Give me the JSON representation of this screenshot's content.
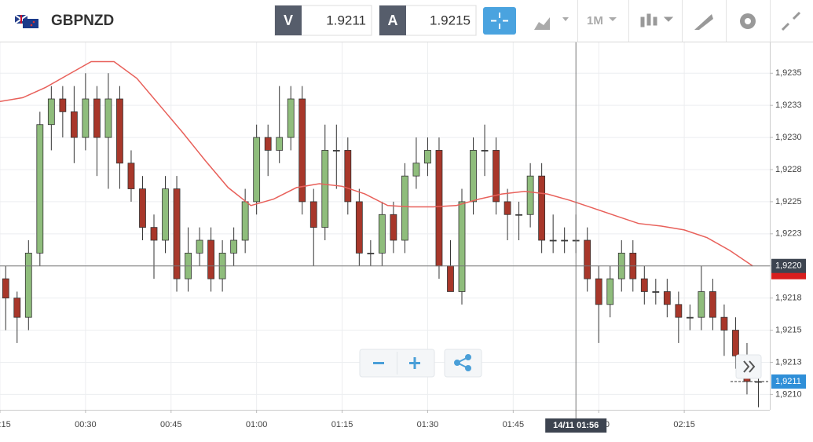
{
  "header": {
    "symbol": "GBPNZD",
    "bid_label": "V",
    "bid": 1.9211,
    "ask_label": "A",
    "ask": 1.9215,
    "timeframe": "1M"
  },
  "chart_data": {
    "type": "candlestick",
    "x": [
      "00:16",
      "00:18",
      "00:20",
      "00:22",
      "00:24",
      "00:26",
      "00:28",
      "00:30",
      "00:32",
      "00:34",
      "00:36",
      "00:38",
      "00:40",
      "00:42",
      "00:44",
      "00:46",
      "00:48",
      "00:50",
      "00:52",
      "00:54",
      "00:56",
      "00:58",
      "01:00",
      "01:02",
      "01:04",
      "01:06",
      "01:08",
      "01:10",
      "01:12",
      "01:14",
      "01:16",
      "01:18",
      "01:20",
      "01:22",
      "01:24",
      "01:26",
      "01:28",
      "01:30",
      "01:32",
      "01:34",
      "01:36",
      "01:38",
      "01:40",
      "01:42",
      "01:44",
      "01:46",
      "01:48",
      "01:50",
      "01:52",
      "01:54",
      "01:56",
      "01:58",
      "02:00",
      "02:02",
      "02:04",
      "02:06",
      "02:08",
      "02:10",
      "02:12",
      "02:14",
      "02:16",
      "02:18",
      "02:20",
      "02:22",
      "02:24",
      "02:26",
      "02:28"
    ],
    "open": [
      1.9219,
      1.92175,
      1.9216,
      1.9221,
      1.9231,
      1.9233,
      1.9232,
      1.923,
      1.9233,
      1.923,
      1.9233,
      1.9228,
      1.9226,
      1.9223,
      1.9222,
      1.9226,
      1.9219,
      1.9221,
      1.9222,
      1.9219,
      1.9221,
      1.9222,
      1.9225,
      1.923,
      1.9229,
      1.923,
      1.9233,
      1.9225,
      1.9223,
      1.9229,
      1.9229,
      1.9225,
      1.9221,
      1.9221,
      1.9224,
      1.9222,
      1.9227,
      1.9228,
      1.9229,
      1.922,
      1.9218,
      1.9225,
      1.9229,
      1.9229,
      1.9225,
      1.9224,
      1.9224,
      1.9227,
      1.9222,
      1.9222,
      1.9222,
      1.9222,
      1.9219,
      1.9217,
      1.9219,
      1.9221,
      1.9219,
      1.9218,
      1.9218,
      1.9217,
      1.9216,
      1.9216,
      1.9218,
      1.9216,
      1.9215,
      1.9213,
      1.9211
    ],
    "high": [
      1.922,
      1.9218,
      1.9222,
      1.9232,
      1.9234,
      1.9234,
      1.9234,
      1.9235,
      1.9234,
      1.9235,
      1.9234,
      1.9229,
      1.9227,
      1.9224,
      1.9227,
      1.9227,
      1.9223,
      1.9223,
      1.9223,
      1.9222,
      1.9223,
      1.9226,
      1.9231,
      1.9231,
      1.9234,
      1.9234,
      1.9234,
      1.9226,
      1.9231,
      1.9231,
      1.923,
      1.9226,
      1.9222,
      1.9225,
      1.9225,
      1.9228,
      1.923,
      1.923,
      1.923,
      1.9222,
      1.9226,
      1.923,
      1.9231,
      1.923,
      1.9226,
      1.9225,
      1.9228,
      1.9228,
      1.9224,
      1.9223,
      1.9224,
      1.9223,
      1.922,
      1.922,
      1.9222,
      1.9222,
      1.922,
      1.9219,
      1.9219,
      1.9218,
      1.9217,
      1.922,
      1.9219,
      1.9217,
      1.9216,
      1.9214,
      1.9212
    ],
    "low": [
      1.9215,
      1.9214,
      1.9215,
      1.922,
      1.9229,
      1.923,
      1.9228,
      1.9229,
      1.9227,
      1.9226,
      1.9226,
      1.9225,
      1.9222,
      1.9219,
      1.9221,
      1.9218,
      1.9218,
      1.922,
      1.9218,
      1.9218,
      1.922,
      1.9221,
      1.9224,
      1.9227,
      1.9228,
      1.9229,
      1.9224,
      1.922,
      1.9222,
      1.9226,
      1.9224,
      1.922,
      1.922,
      1.922,
      1.9221,
      1.9221,
      1.9226,
      1.9227,
      1.9219,
      1.9218,
      1.9217,
      1.9224,
      1.9227,
      1.9224,
      1.9222,
      1.9222,
      1.9223,
      1.9221,
      1.9221,
      1.9221,
      1.9221,
      1.9218,
      1.9214,
      1.9216,
      1.9218,
      1.9218,
      1.9217,
      1.9217,
      1.9216,
      1.9214,
      1.9215,
      1.9215,
      1.9215,
      1.9213,
      1.9212,
      1.921,
      1.9209
    ],
    "close": [
      1.92175,
      1.9216,
      1.9221,
      1.9231,
      1.9233,
      1.9232,
      1.923,
      1.9233,
      1.923,
      1.9233,
      1.9228,
      1.9226,
      1.9223,
      1.9222,
      1.9226,
      1.9219,
      1.9221,
      1.9222,
      1.9219,
      1.9221,
      1.9222,
      1.9225,
      1.923,
      1.9229,
      1.923,
      1.9233,
      1.9225,
      1.9223,
      1.9229,
      1.9229,
      1.9225,
      1.9221,
      1.9221,
      1.9224,
      1.9222,
      1.9227,
      1.9228,
      1.9229,
      1.922,
      1.9218,
      1.9225,
      1.9229,
      1.9229,
      1.9225,
      1.9224,
      1.9224,
      1.9227,
      1.9222,
      1.9222,
      1.9222,
      1.9222,
      1.9219,
      1.9217,
      1.9219,
      1.9221,
      1.9219,
      1.9218,
      1.9218,
      1.9217,
      1.9216,
      1.9216,
      1.9218,
      1.9216,
      1.9215,
      1.9213,
      1.9211,
      1.9211
    ],
    "up_color": "#8fbd7c",
    "down_color": "#a8372a",
    "moving_average": {
      "color": "#e8605a",
      "x": [
        "00:15",
        "00:19",
        "00:23",
        "00:27",
        "00:31",
        "00:35",
        "00:39",
        "00:43",
        "00:47",
        "00:51",
        "00:55",
        "00:59",
        "01:03",
        "01:07",
        "01:11",
        "01:15",
        "01:19",
        "01:23",
        "01:27",
        "01:31",
        "01:35",
        "01:39",
        "01:43",
        "01:47",
        "01:51",
        "01:55",
        "01:59",
        "02:03",
        "02:07",
        "02:11",
        "02:15",
        "02:19",
        "02:23",
        "02:27"
      ],
      "values": [
        1.92328,
        1.92331,
        1.92339,
        1.92349,
        1.92359,
        1.92359,
        1.92346,
        1.92325,
        1.92304,
        1.92282,
        1.92261,
        1.92247,
        1.92252,
        1.92261,
        1.92264,
        1.92262,
        1.92256,
        1.92247,
        1.92246,
        1.92246,
        1.92247,
        1.92252,
        1.92256,
        1.92258,
        1.92256,
        1.92251,
        1.92245,
        1.92239,
        1.92233,
        1.92231,
        1.92228,
        1.92222,
        1.92212,
        1.922
      ]
    },
    "xlim": [
      "00:15",
      "02:30"
    ],
    "xticks": [
      "00:15",
      "00:30",
      "00:45",
      "01:00",
      "01:15",
      "01:30",
      "01:45",
      "02:00",
      "02:15"
    ],
    "ylim": [
      1.92088,
      1.92374
    ],
    "yticks": [
      {
        "value": 1.9235,
        "label": "1,9235"
      },
      {
        "value": 1.92325,
        "label": "1,9233"
      },
      {
        "value": 1.923,
        "label": "1,9230"
      },
      {
        "value": 1.92275,
        "label": "1,9228"
      },
      {
        "value": 1.9225,
        "label": "1,9225"
      },
      {
        "value": 1.92225,
        "label": "1,9223"
      },
      {
        "value": 1.922,
        "label": "1,9220"
      },
      {
        "value": 1.92175,
        "label": "1,9218"
      },
      {
        "value": 1.9215,
        "label": "1,9215"
      },
      {
        "value": 1.92125,
        "label": "1,9213"
      },
      {
        "value": 1.921,
        "label": "1,9210"
      }
    ],
    "grid": true,
    "crosshair": {
      "time": "01:56",
      "time_label": "14/11 01:56",
      "price": {
        "value": 1.922,
        "label": "1,9220"
      }
    },
    "last_price": {
      "value": 1.9211,
      "label": "1,9211"
    }
  }
}
